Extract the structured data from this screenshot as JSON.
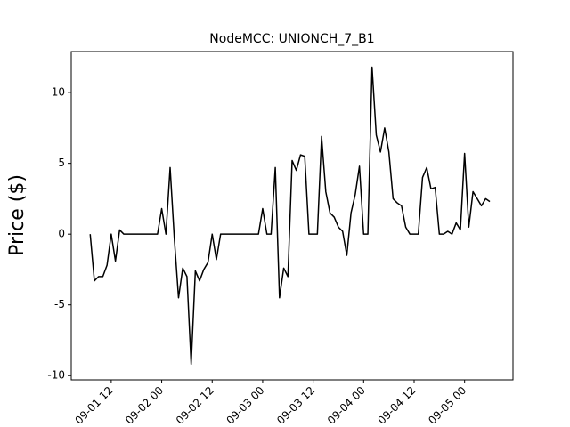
{
  "chart_data": {
    "type": "line",
    "title": "NodeMCC: UNIONCH_7_B1",
    "y_label": "Price ($)",
    "x": [
      "09-01 07:00",
      "09-01 08:00",
      "09-01 09:00",
      "09-01 10:00",
      "09-01 11:00",
      "09-01 12:00",
      "09-01 13:00",
      "09-01 14:00",
      "09-01 15:00",
      "09-01 16:00",
      "09-01 17:00",
      "09-01 18:00",
      "09-01 19:00",
      "09-01 20:00",
      "09-01 21:00",
      "09-01 22:00",
      "09-01 23:00",
      "09-02 00:00",
      "09-02 01:00",
      "09-02 02:00",
      "09-02 03:00",
      "09-02 04:00",
      "09-02 05:00",
      "09-02 06:00",
      "09-02 07:00",
      "09-02 08:00",
      "09-02 09:00",
      "09-02 10:00",
      "09-02 11:00",
      "09-02 12:00",
      "09-02 13:00",
      "09-02 14:00",
      "09-02 15:00",
      "09-02 16:00",
      "09-02 17:00",
      "09-02 18:00",
      "09-02 19:00",
      "09-02 20:00",
      "09-02 21:00",
      "09-02 22:00",
      "09-02 23:00",
      "09-03 00:00",
      "09-03 01:00",
      "09-03 02:00",
      "09-03 03:00",
      "09-03 04:00",
      "09-03 05:00",
      "09-03 06:00",
      "09-03 07:00",
      "09-03 08:00",
      "09-03 09:00",
      "09-03 10:00",
      "09-03 11:00",
      "09-03 12:00",
      "09-03 13:00",
      "09-03 14:00",
      "09-03 15:00",
      "09-03 16:00",
      "09-03 17:00",
      "09-03 18:00",
      "09-03 19:00",
      "09-03 20:00",
      "09-03 21:00",
      "09-03 22:00",
      "09-03 23:00",
      "09-04 00:00",
      "09-04 01:00",
      "09-04 02:00",
      "09-04 03:00",
      "09-04 04:00",
      "09-04 05:00",
      "09-04 06:00",
      "09-04 07:00",
      "09-04 08:00",
      "09-04 09:00",
      "09-04 10:00",
      "09-04 11:00",
      "09-04 12:00",
      "09-04 13:00",
      "09-04 14:00",
      "09-04 15:00",
      "09-04 16:00",
      "09-04 17:00",
      "09-04 18:00",
      "09-04 19:00",
      "09-04 20:00",
      "09-04 21:00",
      "09-04 22:00",
      "09-04 23:00",
      "09-05 00:00",
      "09-05 01:00",
      "09-05 02:00",
      "09-05 03:00",
      "09-05 04:00",
      "09-05 05:00",
      "09-05 06:00"
    ],
    "series": [
      {
        "name": "UNIONCH_7_B1",
        "color": "#000000",
        "values": [
          0,
          -3.3,
          -3,
          -3,
          -2.2,
          0,
          -1.9,
          0.3,
          0,
          0,
          0,
          0,
          0,
          0,
          0,
          0,
          0,
          1.8,
          0,
          4.7,
          -0.3,
          -4.5,
          -2.4,
          -3,
          -9.2,
          -2.6,
          -3.3,
          -2.5,
          -2,
          0,
          -1.8,
          0,
          0,
          0,
          0,
          0,
          0,
          0,
          0,
          0,
          0,
          1.8,
          0,
          0,
          4.7,
          -4.5,
          -2.4,
          -3,
          5.2,
          4.5,
          5.6,
          5.5,
          0,
          0,
          0,
          6.9,
          3,
          1.5,
          1.2,
          0.5,
          0.2,
          -1.5,
          1.5,
          2.8,
          4.8,
          0,
          0,
          11.8,
          7,
          5.8,
          7.5,
          5.8,
          2.5,
          2.2,
          2,
          0.5,
          0,
          0,
          0,
          4,
          4.7,
          3.2,
          3.3,
          0,
          0,
          0.2,
          0,
          0.8,
          0.3,
          5.7,
          0.5,
          3,
          2.5,
          2,
          2.5,
          2.3
        ]
      }
    ],
    "xlim": [
      "09-01 02:30",
      "09-05 11:30"
    ],
    "xticks": [
      {
        "value": "09-01 12:00",
        "label": "09-01 12"
      },
      {
        "value": "09-02 00:00",
        "label": "09-02 00"
      },
      {
        "value": "09-02 12:00",
        "label": "09-02 12"
      },
      {
        "value": "09-03 00:00",
        "label": "09-03 00"
      },
      {
        "value": "09-03 12:00",
        "label": "09-03 12"
      },
      {
        "value": "09-04 00:00",
        "label": "09-04 00"
      },
      {
        "value": "09-04 12:00",
        "label": "09-04 12"
      },
      {
        "value": "09-05 00:00",
        "label": "09-05 00"
      }
    ],
    "ylim": [
      -10.3,
      12.9
    ],
    "yticks": [
      -10,
      -5,
      0,
      5,
      10
    ],
    "grid": false
  }
}
